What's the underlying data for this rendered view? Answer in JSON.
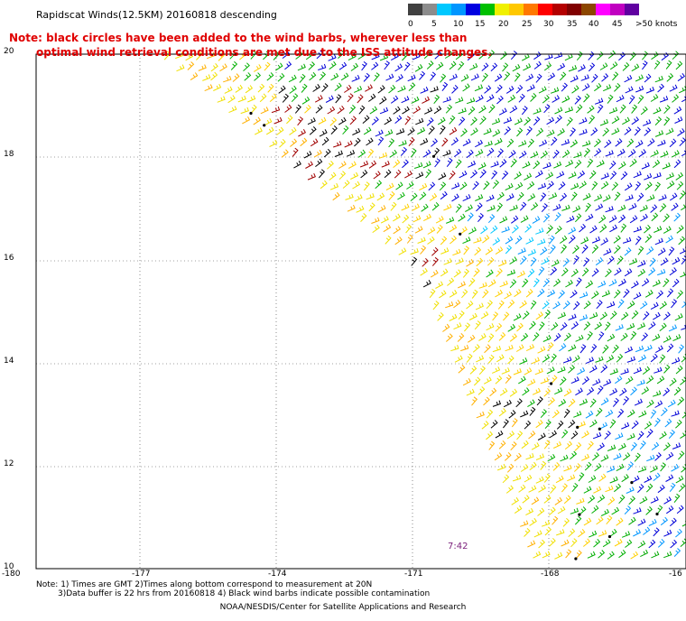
{
  "title": "Rapidscat Winds(12.5KM) 20160818 descending",
  "note": {
    "line1": "Note: black circles have been added to the wind barbs, wherever less than",
    "line2": "optimal wind retrieval conditions are met due to the ISS attitude changes."
  },
  "legend": {
    "labels": [
      "0",
      "5",
      "10",
      "15",
      "20",
      "25",
      "30",
      "35",
      "40",
      "45",
      ">50 knots"
    ],
    "colors": [
      "#404040",
      "#8c8c8c",
      "#00c8ff",
      "#0096ff",
      "#0000e0",
      "#00c000",
      "#f0f000",
      "#ffc800",
      "#ff7800",
      "#ff0000",
      "#b40000",
      "#800000",
      "#8c4600",
      "#ff00ff",
      "#c000c0",
      "#6000a0"
    ]
  },
  "axes": {
    "lat_ticks": [
      "20",
      "18",
      "16",
      "14",
      "12",
      "10"
    ],
    "lon_ticks": [
      "-180",
      "-177",
      "-174",
      "-171",
      "-168",
      "-16"
    ]
  },
  "time_label": "7:42",
  "footer": {
    "line1": "Note: 1) Times are GMT 2)Times along bottom correspond to measurement at 20N",
    "line2": "3)Data buffer is 22 hrs from 20160818 4) Black wind barbs indicate possible contamination",
    "credit": "NOAA/NESDIS/Center for Satellite Applications and Research"
  }
}
